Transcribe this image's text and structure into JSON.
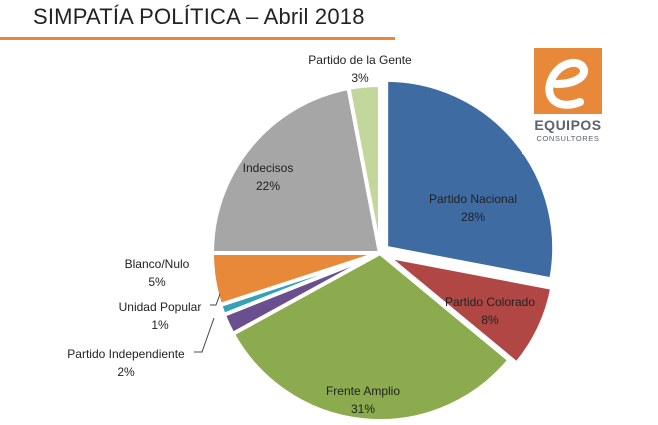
{
  "title": "SIMPATÍA POLÍTICA – Abril 2018",
  "colors": {
    "accent": "#e8893a"
  },
  "logo": {
    "icon": "e-letter-logo-icon",
    "word": "EQUIPOS",
    "sub": "CONSULTORES"
  },
  "chart_data": {
    "type": "pie",
    "title": "SIMPATÍA POLÍTICA – Abril 2018",
    "unit": "%",
    "slices": [
      {
        "label": "Partido Nacional",
        "value": 28,
        "display": "28%",
        "color": "#3f6ba3",
        "exploded": true
      },
      {
        "label": "Partido Colorado",
        "value": 8,
        "display": "8%",
        "color": "#b04745",
        "exploded": true
      },
      {
        "label": "Frente Amplio",
        "value": 31,
        "display": "31%",
        "color": "#8bab4e",
        "exploded": false
      },
      {
        "label": "Partido Independiente",
        "value": 2,
        "display": "2%",
        "color": "#6a4f8e",
        "exploded": false
      },
      {
        "label": "Unidad Popular",
        "value": 1,
        "display": "1%",
        "color": "#35a0b6",
        "exploded": false
      },
      {
        "label": "Blanco/Nulo",
        "value": 5,
        "display": "5%",
        "color": "#e8893a",
        "exploded": false
      },
      {
        "label": "Indecisos",
        "value": 22,
        "display": "22%",
        "color": "#a6a6a6",
        "exploded": false
      },
      {
        "label": "Partido de la Gente",
        "value": 3,
        "display": "3%",
        "color": "#c3d69b",
        "exploded": false
      }
    ]
  }
}
